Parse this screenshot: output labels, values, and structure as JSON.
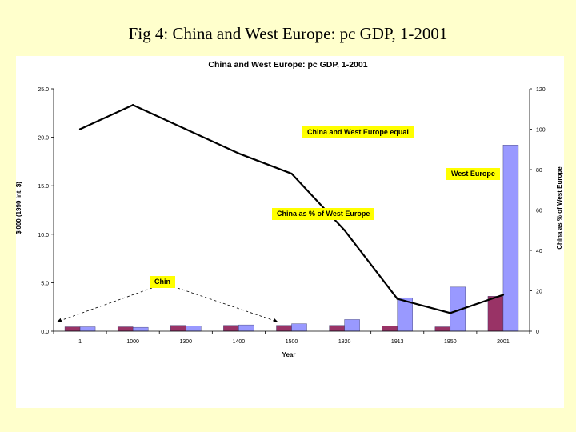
{
  "slide": {
    "title": "Fig 4: China and West Europe: pc GDP, 1-2001"
  },
  "chart_data": {
    "type": "bar",
    "title": "China and West Europe: pc GDP, 1-2001",
    "xlabel": "Year",
    "ylabel": "$'000 (1990 int. $)",
    "y2label": "China as % of West Europe",
    "categories": [
      "1",
      "1000",
      "1300",
      "1400",
      "1500",
      "1820",
      "1913",
      "1950",
      "2001"
    ],
    "ylim": [
      0,
      25
    ],
    "y2lim": [
      0,
      120
    ],
    "yticks": [
      "0.0",
      "5.0",
      "10.0",
      "15.0",
      "20.0",
      "25.0"
    ],
    "y2ticks": [
      "0",
      "20",
      "40",
      "60",
      "80",
      "100",
      "120"
    ],
    "series": [
      {
        "name": "China",
        "kind": "bar",
        "axis": "left",
        "color": "#993366",
        "values": [
          0.45,
          0.45,
          0.6,
          0.6,
          0.6,
          0.6,
          0.55,
          0.45,
          3.6
        ]
      },
      {
        "name": "West Europe",
        "kind": "bar",
        "axis": "left",
        "color": "#9999FF",
        "values": [
          0.45,
          0.4,
          0.55,
          0.65,
          0.77,
          1.2,
          3.45,
          4.55,
          19.2
        ]
      },
      {
        "name": "China as % of West Europe",
        "kind": "line",
        "axis": "right",
        "color": "#000000",
        "values": [
          100,
          112,
          100,
          88,
          78,
          50,
          16,
          9,
          18
        ]
      }
    ],
    "annotations": {
      "equal": "China and West Europe equal",
      "west_europe": "West Europe",
      "ratio": "China as % of West Europe",
      "china": "Chin"
    }
  }
}
